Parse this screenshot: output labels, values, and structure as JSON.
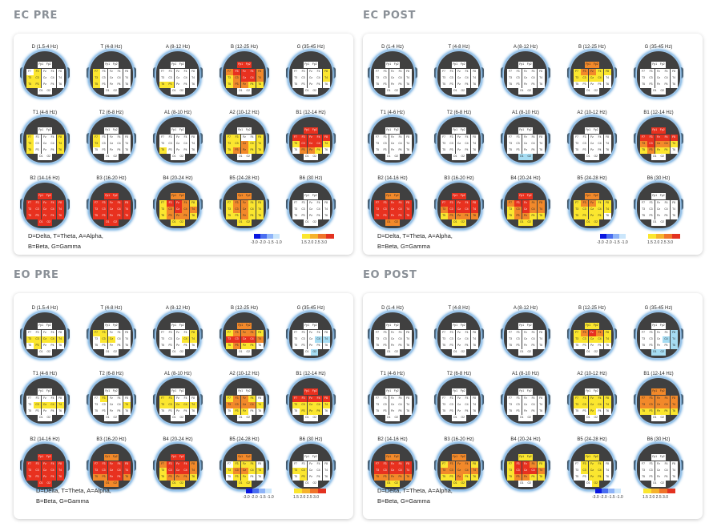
{
  "panels": [
    {
      "id": "ec-pre",
      "title": "EC PRE",
      "maps": [
        {
          "label": "D (1.5-4 Hz)",
          "cells": {
            "F3": "y",
            "T3": "y",
            "C3": "y",
            "T5": "y",
            "P3": "y"
          }
        },
        {
          "label": "T (4-8 Hz)",
          "cells": {
            "F7": "y",
            "T3": "y",
            "T5": "y"
          }
        },
        {
          "label": "A (8-12 Hz)",
          "cells": {
            "P3": "y",
            "T5": "y"
          }
        },
        {
          "label": "B (12-25 Hz)",
          "cells": {
            "Fp1": "r",
            "Fp2": "r",
            "F7": "o",
            "F3": "r",
            "Fz": "r",
            "F4": "r",
            "F8": "o",
            "T3": "y",
            "C3": "o",
            "Cz": "r",
            "C4": "r",
            "T4": "o",
            "T5": "y",
            "P3": "o",
            "Pz": "o",
            "P4": "y",
            "T6": "y"
          }
        },
        {
          "label": "G (35-45 Hz)",
          "cells": {
            "F8": "y",
            "T4": "y"
          }
        },
        {
          "label": "T1 (4-6 Hz)",
          "cells": {
            "F7": "y",
            "T3": "y",
            "T5": "y",
            "F8": "y",
            "T4": "y",
            "T6": "y"
          }
        },
        {
          "label": "T2 (6-8 Hz)",
          "cells": {
            "F7": "y",
            "T3": "y"
          }
        },
        {
          "label": "A1 (8-10 Hz)",
          "cells": {
            "T5": "y"
          }
        },
        {
          "label": "A2 (10-12 Hz)",
          "cells": {
            "F7": "y",
            "F3": "y",
            "F8": "y",
            "T3": "y",
            "C3": "y",
            "Cz": "o",
            "C4": "y",
            "T4": "y",
            "T5": "y",
            "P3": "o",
            "Pz": "o",
            "P4": "y",
            "T6": "y"
          }
        },
        {
          "label": "B1 (12-14 Hz)",
          "cells": {
            "Fp1": "r",
            "Fp2": "r",
            "F7": "r",
            "F3": "r",
            "Fz": "r",
            "F4": "r",
            "F8": "r",
            "T3": "y",
            "C3": "r",
            "Cz": "r",
            "C4": "r",
            "T4": "y",
            "P3": "o",
            "Pz": "o",
            "P4": "y"
          }
        },
        {
          "label": "B2 (14-16 Hz)",
          "cells": {
            "Fp1": "r",
            "Fp2": "r",
            "F7": "r",
            "F3": "r",
            "Fz": "r",
            "F4": "r",
            "F8": "r",
            "T3": "r",
            "C3": "r",
            "Cz": "r",
            "C4": "r",
            "T4": "r",
            "T5": "r",
            "P3": "r",
            "Pz": "r",
            "P4": "r",
            "T6": "r",
            "O1": "r",
            "O2": "r"
          }
        },
        {
          "label": "B3 (16-20 Hz)",
          "cells": {
            "Fp1": "r",
            "Fp2": "r",
            "F7": "r",
            "F3": "r",
            "Fz": "r",
            "F4": "r",
            "F8": "r",
            "T3": "r",
            "C3": "r",
            "Cz": "r",
            "C4": "r",
            "T4": "r",
            "T5": "r",
            "P3": "r",
            "Pz": "r",
            "P4": "r",
            "T6": "r",
            "O1": "r",
            "O2": "r"
          }
        },
        {
          "label": "B4 (20-24 Hz)",
          "cells": {
            "Fp1": "o",
            "Fp2": "o",
            "F7": "y",
            "F3": "r",
            "Fz": "r",
            "F4": "o",
            "F8": "y",
            "T3": "y",
            "C3": "o",
            "Cz": "r",
            "C4": "o",
            "T4": "o",
            "T5": "y",
            "P3": "o",
            "Pz": "o",
            "P4": "o",
            "T6": "y",
            "O1": "y",
            "O2": "y"
          }
        },
        {
          "label": "B5 (24-28 Hz)",
          "cells": {
            "Fp1": "o",
            "Fp2": "o",
            "F7": "y",
            "F3": "o",
            "Fz": "o",
            "F4": "y",
            "F8": "y",
            "T3": "y",
            "C3": "o",
            "Cz": "o",
            "C4": "y",
            "T4": "y",
            "T5": "y",
            "P3": "y",
            "Pz": "o",
            "P4": "y",
            "T6": "y",
            "O1": "y",
            "O2": "y"
          }
        },
        {
          "label": "B6 (30 Hz)",
          "cells": {}
        }
      ],
      "caption1": "D=Delta, T=Theta, A=Alpha,",
      "caption2": "B=Beta, G=Gamma",
      "scale_neg": "-3.0 -2.0 -1.5 -1.0",
      "scale_pos": "1.5  2.0  2.5  3.0"
    },
    {
      "id": "ec-post",
      "title": "EC POST",
      "maps": [
        {
          "label": "D (1-4 Hz)",
          "cells": {}
        },
        {
          "label": "T (4-8 Hz)",
          "cells": {}
        },
        {
          "label": "A (8-12 Hz)",
          "cells": {}
        },
        {
          "label": "B (12-25 Hz)",
          "cells": {
            "Fp1": "o",
            "Fp2": "o",
            "F7": "y",
            "F3": "o",
            "Fz": "o",
            "F4": "y",
            "F8": "y",
            "T3": "y",
            "C3": "y",
            "Cz": "y",
            "C4": "y"
          }
        },
        {
          "label": "G (35-45 Hz)",
          "cells": {}
        },
        {
          "label": "T1 (4-6 Hz)",
          "cells": {}
        },
        {
          "label": "T2 (6-8 Hz)",
          "cells": {}
        },
        {
          "label": "A1 (8-10 Hz)",
          "cells": {
            "O1": "c",
            "O2": "c"
          }
        },
        {
          "label": "A2 (10-12 Hz)",
          "cells": {}
        },
        {
          "label": "B1 (12-14 Hz)",
          "cells": {
            "Fp1": "r",
            "Fp2": "r",
            "F7": "r",
            "F3": "r",
            "Fz": "r",
            "F4": "r",
            "F8": "r",
            "T3": "o",
            "C3": "r",
            "Cz": "o",
            "C4": "o",
            "T4": "y",
            "T5": "y",
            "P3": "o",
            "Pz": "y",
            "P4": "y"
          }
        },
        {
          "label": "B2 (14-16 Hz)",
          "cells": {
            "Fp1": "o",
            "Fp2": "o",
            "F7": "r",
            "F3": "r",
            "Fz": "r",
            "F4": "r",
            "F8": "r",
            "T3": "r",
            "C3": "r",
            "Cz": "r",
            "C4": "r",
            "T4": "r",
            "T5": "r",
            "P3": "r",
            "Pz": "r",
            "P4": "r",
            "T6": "r",
            "O1": "o",
            "O2": "o"
          }
        },
        {
          "label": "B3 (16-20 Hz)",
          "cells": {
            "Fp1": "r",
            "Fp2": "r",
            "F7": "r",
            "F3": "r",
            "Fz": "r",
            "F4": "r",
            "F8": "r",
            "T3": "o",
            "C3": "r",
            "Cz": "r",
            "C4": "r",
            "T4": "r",
            "T5": "y",
            "P3": "o",
            "Pz": "o",
            "P4": "o",
            "T6": "o",
            "O1": "y",
            "O2": "y"
          }
        },
        {
          "label": "B4 (20-24 Hz)",
          "cells": {
            "Fp1": "r",
            "Fp2": "r",
            "F7": "o",
            "F3": "r",
            "Fz": "r",
            "F4": "o",
            "F8": "o",
            "T3": "y",
            "C3": "o",
            "Cz": "r",
            "C4": "o",
            "T4": "o",
            "T5": "y",
            "P3": "o",
            "Pz": "o",
            "P4": "y",
            "T6": "y",
            "O1": "y",
            "O2": "y"
          }
        },
        {
          "label": "B5 (24-28 Hz)",
          "cells": {
            "Fp1": "o",
            "Fp2": "o",
            "F7": "y",
            "F3": "o",
            "Fz": "o",
            "F4": "y",
            "F8": "y",
            "T3": "y",
            "C3": "y",
            "Cz": "y",
            "C4": "y",
            "T4": "y",
            "T5": "y",
            "P3": "y",
            "Pz": "y",
            "P4": "y",
            "O1": "y",
            "O2": "y"
          }
        },
        {
          "label": "B6 (30 Hz)",
          "cells": {}
        }
      ],
      "caption1": "D=Delta, T=Theta, A=Alpha,",
      "caption2": "B=Beta, G=Gamma",
      "scale_neg": "-3.0 -2.0 -1.5 -1.0",
      "scale_pos": "1.5  2.0  2.5  3.0"
    },
    {
      "id": "eo-pre",
      "title": "EO PRE",
      "maps": [
        {
          "label": "D (1.5-4 Hz)",
          "cells": {
            "T3": "y",
            "C3": "y",
            "Cz": "y",
            "C4": "y",
            "T4": "y",
            "P3": "y"
          }
        },
        {
          "label": "T (4-8 Hz)",
          "cells": {
            "F7": "y",
            "F3": "y",
            "C3": "y",
            "Cz": "y"
          }
        },
        {
          "label": "A (8-12 Hz)",
          "cells": {
            "F8": "y",
            "C4": "y",
            "T4": "y"
          }
        },
        {
          "label": "B (12-25 Hz)",
          "cells": {
            "Fp1": "o",
            "Fp2": "o",
            "F7": "y",
            "F3": "o",
            "Fz": "o",
            "F4": "o",
            "F8": "y",
            "T3": "r",
            "C3": "r",
            "Cz": "r",
            "C4": "r",
            "T4": "o",
            "T5": "y",
            "P3": "o",
            "Pz": "y",
            "P4": "y"
          }
        },
        {
          "label": "G (35-45 Hz)",
          "cells": {
            "C4": "c",
            "T4": "c",
            "O2": "c"
          }
        },
        {
          "label": "T1 (4-6 Hz)",
          "cells": {
            "C3": "y",
            "Cz": "y",
            "C4": "y",
            "T4": "y"
          }
        },
        {
          "label": "T2 (6-8 Hz)",
          "cells": {
            "F3": "y",
            "T4": "y"
          }
        },
        {
          "label": "A1 (8-10 Hz)",
          "cells": {
            "F7": "y",
            "F3": "y",
            "T3": "y",
            "C3": "y",
            "Cz": "y",
            "C4": "y",
            "T4": "y"
          }
        },
        {
          "label": "A2 (10-12 Hz)",
          "cells": {
            "F7": "y",
            "F3": "o",
            "Fz": "o",
            "F4": "y",
            "T3": "o",
            "C3": "o",
            "Cz": "o",
            "C4": "o",
            "T4": "y",
            "P3": "y",
            "Pz": "y"
          }
        },
        {
          "label": "B1 (12-14 Hz)",
          "cells": {
            "Fp1": "r",
            "Fp2": "r",
            "F7": "r",
            "F3": "r",
            "Fz": "r",
            "F4": "r",
            "F8": "r",
            "T3": "y",
            "C3": "y",
            "Cz": "y",
            "C4": "y",
            "T4": "y",
            "P3": "y",
            "Pz": "y",
            "P4": "y"
          }
        },
        {
          "label": "B2 (14-16 Hz)",
          "cells": {
            "Fp1": "r",
            "Fp2": "r",
            "F7": "r",
            "F3": "r",
            "Fz": "r",
            "F4": "r",
            "F8": "r",
            "T3": "r",
            "C3": "r",
            "Cz": "r",
            "C4": "r",
            "T4": "r",
            "T5": "r",
            "P3": "r",
            "Pz": "r",
            "P4": "r",
            "T6": "r",
            "O1": "r",
            "O2": "r"
          }
        },
        {
          "label": "B3 (16-20 Hz)",
          "cells": {
            "Fp1": "o",
            "Fp2": "o",
            "F7": "r",
            "F3": "r",
            "Fz": "r",
            "F4": "r",
            "F8": "r",
            "T3": "r",
            "C3": "r",
            "Cz": "r",
            "C4": "r",
            "T4": "r",
            "T5": "o",
            "P3": "o",
            "Pz": "r",
            "P4": "r",
            "T6": "o",
            "O1": "o",
            "O2": "o"
          }
        },
        {
          "label": "B4 (20-24 Hz)",
          "cells": {
            "Fp1": "r",
            "Fp2": "r",
            "F7": "o",
            "F3": "r",
            "Fz": "r",
            "F4": "r",
            "F8": "o",
            "T3": "y",
            "C3": "r",
            "Cz": "r",
            "C4": "r",
            "T4": "o",
            "T5": "y",
            "P3": "o",
            "Pz": "o",
            "P4": "o",
            "T6": "y",
            "O1": "y",
            "O2": "y"
          }
        },
        {
          "label": "B5 (24-28 Hz)",
          "cells": {
            "Fp1": "o",
            "Fp2": "o",
            "F3": "y",
            "Fz": "y",
            "F4": "y",
            "T3": "y",
            "C3": "o",
            "Cz": "o",
            "C4": "y",
            "T4": "y",
            "P3": "y",
            "Pz": "y",
            "O1": "y",
            "O2": "y"
          }
        },
        {
          "label": "B6 (30 Hz)",
          "cells": {
            "T3": "y",
            "C3": "y",
            "P3": "y"
          }
        }
      ],
      "caption1": "D=Delta, T=Theta, A=Alpha,",
      "caption2": "B=Beta, G=Gamma",
      "scale_neg": "-3.0 -2.0 -1.5 -1.0",
      "scale_pos": "1.5  2.0  2.5  3.0"
    },
    {
      "id": "eo-post",
      "title": "EO POST",
      "maps": [
        {
          "label": "D (1-4 Hz)",
          "cells": {}
        },
        {
          "label": "T (4-8 Hz)",
          "cells": {}
        },
        {
          "label": "A (8-12 Hz)",
          "cells": {}
        },
        {
          "label": "B (12-25 Hz)",
          "cells": {
            "Fp1": "y",
            "Fp2": "y",
            "F7": "y",
            "F3": "o",
            "Fz": "r",
            "F4": "o",
            "F8": "y",
            "T3": "y",
            "C3": "y",
            "Cz": "y",
            "C4": "y",
            "T4": "y"
          }
        },
        {
          "label": "G (35-45 Hz)",
          "cells": {
            "F8": "c",
            "C4": "c",
            "T4": "c",
            "T6": "c",
            "O1": "c",
            "O2": "c"
          }
        },
        {
          "label": "T1 (4-6 Hz)",
          "cells": {}
        },
        {
          "label": "T2 (6-8 Hz)",
          "cells": {}
        },
        {
          "label": "A1 (8-10 Hz)",
          "cells": {}
        },
        {
          "label": "A2 (10-12 Hz)",
          "cells": {
            "F7": "y",
            "F3": "y",
            "Fz": "y",
            "F4": "y",
            "F8": "y",
            "T3": "y",
            "C3": "y",
            "Cz": "y",
            "C4": "y",
            "T4": "y",
            "Pz": "y"
          }
        },
        {
          "label": "B1 (12-14 Hz)",
          "cells": {
            "Fp1": "o",
            "Fp2": "o",
            "F7": "o",
            "F3": "o",
            "Fz": "o",
            "F4": "o",
            "F8": "o",
            "T3": "o",
            "C3": "o",
            "Cz": "o",
            "C4": "o",
            "T4": "o",
            "T5": "y",
            "P3": "y",
            "Pz": "y",
            "P4": "y",
            "T6": "y"
          }
        },
        {
          "label": "B2 (14-16 Hz)",
          "cells": {
            "Fp1": "o",
            "Fp2": "o",
            "F7": "r",
            "F3": "r",
            "Fz": "r",
            "F4": "r",
            "F8": "r",
            "T3": "r",
            "C3": "r",
            "Cz": "r",
            "C4": "r",
            "T4": "r",
            "T5": "o",
            "P3": "o",
            "Pz": "o",
            "P4": "o",
            "T6": "o",
            "O1": "y",
            "O2": "y"
          }
        },
        {
          "label": "B3 (16-20 Hz)",
          "cells": {
            "Fp1": "o",
            "Fp2": "o",
            "F7": "y",
            "F3": "o",
            "Fz": "o",
            "F4": "o",
            "F8": "y",
            "T3": "o",
            "C3": "o",
            "Cz": "o",
            "C4": "o",
            "T4": "o",
            "T5": "y",
            "P3": "y",
            "Pz": "o",
            "P4": "y",
            "T6": "y",
            "O1": "y",
            "O2": "y"
          }
        },
        {
          "label": "B4 (20-24 Hz)",
          "cells": {
            "Fp1": "y",
            "Fp2": "y",
            "F7": "y",
            "F3": "r",
            "Fz": "r",
            "F4": "o",
            "F8": "y",
            "T3": "y",
            "C3": "r",
            "Cz": "r",
            "C4": "r",
            "T4": "o",
            "T5": "y",
            "P3": "o",
            "Pz": "o",
            "P4": "y",
            "T6": "y"
          }
        },
        {
          "label": "B5 (24-28 Hz)",
          "cells": {
            "Fp1": "y",
            "Fp2": "y",
            "F3": "y",
            "Fz": "y",
            "F4": "y",
            "C3": "y",
            "Cz": "y",
            "C4": "y",
            "Pz": "y",
            "P4": "y",
            "O2": "y"
          }
        },
        {
          "label": "B6 (30 Hz)",
          "cells": {}
        }
      ],
      "caption1": "D=Delta, T=Theta, A=Alpha,",
      "caption2": "B=Beta, G=Gamma",
      "scale_neg": "-3.0 -2.0 -1.5 -1.0",
      "scale_pos": "1.5  2.0  2.5  3.0"
    }
  ],
  "channel_rows": [
    [
      "Fp1",
      "Fp2"
    ],
    [
      "F7",
      "F3",
      "Fz",
      "F4",
      "F8"
    ],
    [
      "T3",
      "C3",
      "Cz",
      "C4",
      "T4"
    ],
    [
      "T5",
      "P3",
      "Pz",
      "P4",
      "T6"
    ],
    [
      "O1",
      "O2"
    ]
  ],
  "colors": {
    "r": "#e8311f",
    "o": "#f2892a",
    "y": "#fbe62f",
    "c": "#a6dcf2",
    "w": "#ffffff"
  },
  "scale_neg_colors": [
    "#0a17e0",
    "#4a6ef0",
    "#8fb4f8",
    "#cbe6fb"
  ],
  "scale_pos_colors": [
    "#fbe62f",
    "#f6b22c",
    "#f0742a",
    "#e33220"
  ]
}
